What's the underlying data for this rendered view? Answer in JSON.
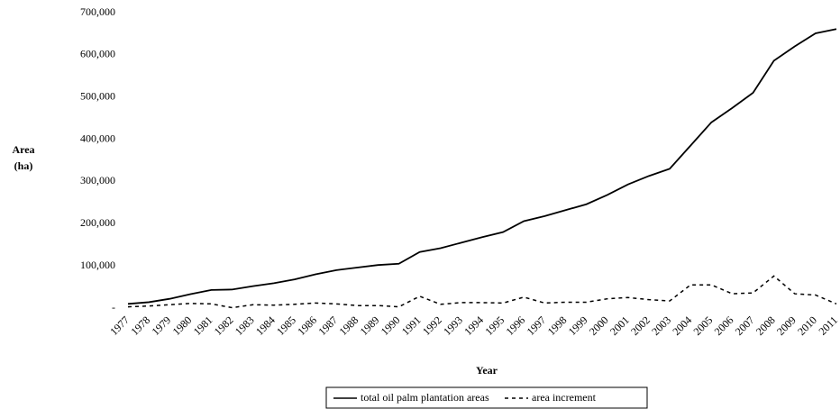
{
  "chart_data": {
    "type": "line",
    "ylabel": [
      "Area",
      "(ha)"
    ],
    "xlabel": "Year",
    "categories": [
      "1977",
      "1978",
      "1979",
      "1980",
      "1981",
      "1982",
      "1983",
      "1984",
      "1985",
      "1986",
      "1987",
      "1988",
      "1989",
      "1990",
      "1991",
      "1992",
      "1993",
      "1994",
      "1995",
      "1996",
      "1997",
      "1998",
      "1999",
      "2000",
      "2001",
      "2002",
      "2003",
      "2004",
      "2005",
      "2006",
      "2007",
      "2008",
      "2009",
      "2010",
      "2011"
    ],
    "series": [
      {
        "name": "total oil palm plantation areas",
        "color": "#000000",
        "style": "solid",
        "values": [
          10000,
          14000,
          22000,
          33000,
          43000,
          44000,
          52000,
          59000,
          68000,
          80000,
          90000,
          96000,
          102000,
          105000,
          133000,
          142000,
          155000,
          168000,
          180000,
          206000,
          218000,
          232000,
          246000,
          268000,
          293000,
          313000,
          330000,
          385000,
          440000,
          474000,
          510000,
          586000,
          620000,
          651000,
          661000
        ]
      },
      {
        "name": "area increment",
        "color": "#000000",
        "style": "dashed",
        "values": [
          3000,
          5000,
          8000,
          11000,
          10000,
          1000,
          8000,
          7000,
          9000,
          12000,
          10000,
          6000,
          6000,
          3000,
          28000,
          9000,
          13000,
          13000,
          12000,
          26000,
          12000,
          14000,
          14000,
          22000,
          25000,
          20000,
          17000,
          55000,
          55000,
          34000,
          36000,
          76000,
          34000,
          31000,
          10000
        ]
      }
    ],
    "ylim": [
      0,
      700000
    ],
    "yticks": [
      {
        "value": 0,
        "label": "-"
      },
      {
        "value": 100000,
        "label": "100,000"
      },
      {
        "value": 200000,
        "label": "200,000"
      },
      {
        "value": 300000,
        "label": "300,000"
      },
      {
        "value": 400000,
        "label": "400,000"
      },
      {
        "value": 500000,
        "label": "500,000"
      },
      {
        "value": 600000,
        "label": "600,000"
      },
      {
        "value": 700000,
        "label": "700,000"
      }
    ],
    "grid": false,
    "legend": "bottom"
  }
}
